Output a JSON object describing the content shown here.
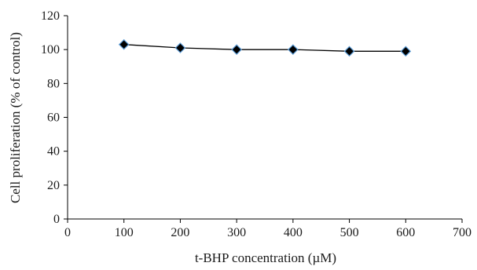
{
  "chart_data": {
    "type": "line",
    "title": "",
    "xlabel": "t-BHP concentration (µM)",
    "ylabel": "Cell proliferation (% of control)",
    "xlim": [
      0,
      700
    ],
    "ylim": [
      0,
      120
    ],
    "xticks": [
      "0",
      "100",
      "200",
      "300",
      "400",
      "500",
      "600",
      "700"
    ],
    "yticks": [
      "0",
      "20",
      "40",
      "60",
      "80",
      "100",
      "120"
    ],
    "grid": false,
    "legend": "none",
    "series": [
      {
        "x": [
          100,
          200,
          300,
          400,
          500,
          600
        ],
        "y": [
          103,
          101,
          100,
          100,
          99,
          99
        ],
        "marker": "diamond",
        "marker_color": "#000000",
        "marker_edge_color": "#5b9bd5",
        "line_color": "#000000"
      }
    ]
  }
}
